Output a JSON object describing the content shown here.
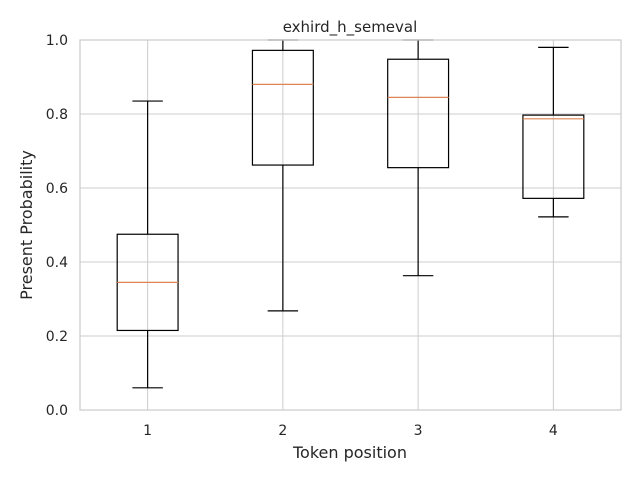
{
  "chart_data": {
    "type": "box",
    "title": "exhird_h_semeval",
    "xlabel": "Token position",
    "ylabel": "Present Probability",
    "ylim": [
      0.0,
      1.0
    ],
    "yticks": [
      "0.0",
      "0.2",
      "0.4",
      "0.6",
      "0.8",
      "1.0"
    ],
    "grid": true,
    "categories": [
      "1",
      "2",
      "3",
      "4"
    ],
    "boxes": [
      {
        "category": "1",
        "whisker_low": 0.06,
        "q1": 0.215,
        "median": 0.345,
        "q3": 0.475,
        "whisker_high": 0.835
      },
      {
        "category": "2",
        "whisker_low": 0.268,
        "q1": 0.662,
        "median": 0.88,
        "q3": 0.972,
        "whisker_high": 1.0
      },
      {
        "category": "3",
        "whisker_low": 0.363,
        "q1": 0.655,
        "median": 0.845,
        "q3": 0.948,
        "whisker_high": 1.0
      },
      {
        "category": "4",
        "whisker_low": 0.522,
        "q1": 0.572,
        "median": 0.787,
        "q3": 0.797,
        "whisker_high": 0.98
      }
    ],
    "colors": {
      "box": "#000000",
      "median": "#dd8452",
      "grid": "#cccccc",
      "spine": "#cccccc"
    }
  }
}
